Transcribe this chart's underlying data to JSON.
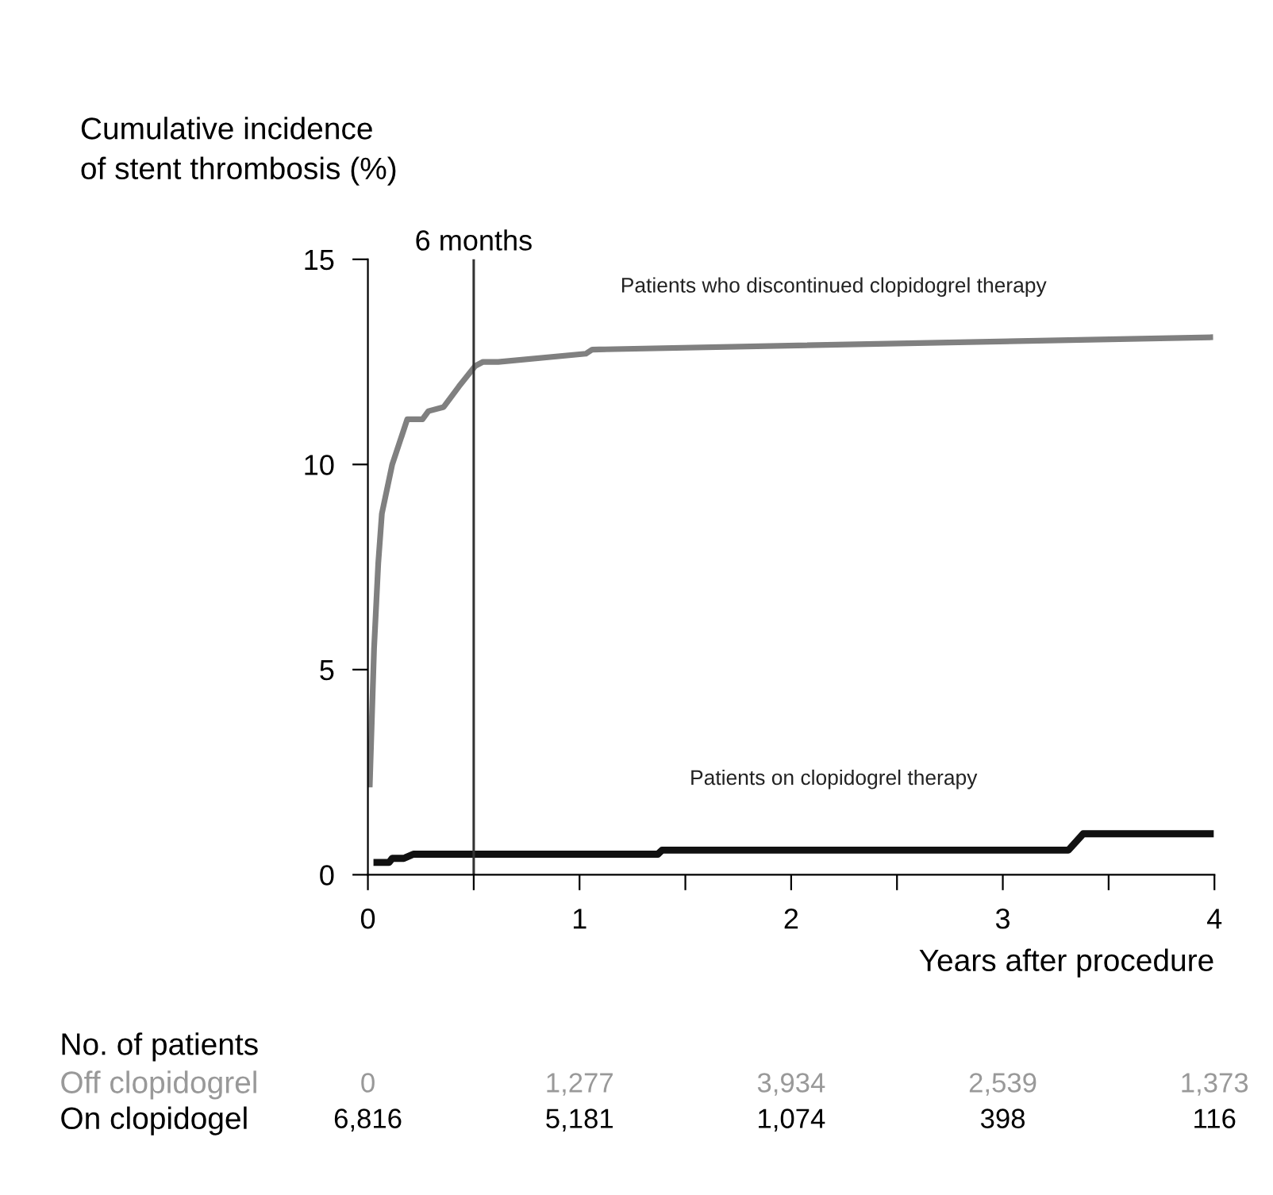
{
  "chart_data": {
    "type": "line",
    "ylabel": "Cumulative incidence\nof stent thrombosis (%)",
    "xlabel": "Years after procedure",
    "xlim": [
      0,
      4
    ],
    "xticks": [
      0,
      {
        "value": 0.5,
        "label": null
      },
      1,
      {
        "value": 1.5,
        "label": null
      },
      2,
      {
        "value": 2.5,
        "label": null
      },
      3,
      {
        "value": 3.5,
        "label": null
      },
      4
    ],
    "ylim": [
      0,
      15
    ],
    "yticks": [
      0,
      5,
      10,
      15
    ],
    "grid": false,
    "legend": false,
    "marker": "none",
    "line_style": "solid",
    "ref_lines": [
      {
        "axis": "x",
        "value": 0.5,
        "label": "6 months",
        "color": "#333333"
      }
    ],
    "series": [
      {
        "name": "Patients who discontinued clopidogrel therapy",
        "color": "#808080",
        "x": [
          0.009,
          0.029,
          0.049,
          0.066,
          0.115,
          0.186,
          0.258,
          0.286,
          0.358,
          0.43,
          0.507,
          0.544,
          0.616,
          1.03,
          1.06,
          3.98
        ],
        "values": [
          2.2,
          5.5,
          7.6,
          8.8,
          10.0,
          11.1,
          11.1,
          11.3,
          11.4,
          11.9,
          12.4,
          12.5,
          12.5,
          12.7,
          12.8,
          13.1
        ]
      },
      {
        "name": "Patients on clopidogrel therapy",
        "color": "#111111",
        "x": [
          0.043,
          0.1,
          0.115,
          0.17,
          0.215,
          0.99,
          1.0,
          1.37,
          1.39,
          3.31,
          3.38,
          3.98
        ],
        "values": [
          0.3,
          0.3,
          0.4,
          0.4,
          0.5,
          0.5,
          0.5,
          0.5,
          0.6,
          0.6,
          1.0,
          1.0
        ]
      }
    ],
    "annotations": [
      "No. of patients",
      "Off clopidogrel",
      "0",
      "1,277",
      "3,934",
      "2,539",
      "1,373",
      "On clopidogel",
      "6,816",
      "5,181",
      "1,074",
      "398",
      "116"
    ]
  }
}
